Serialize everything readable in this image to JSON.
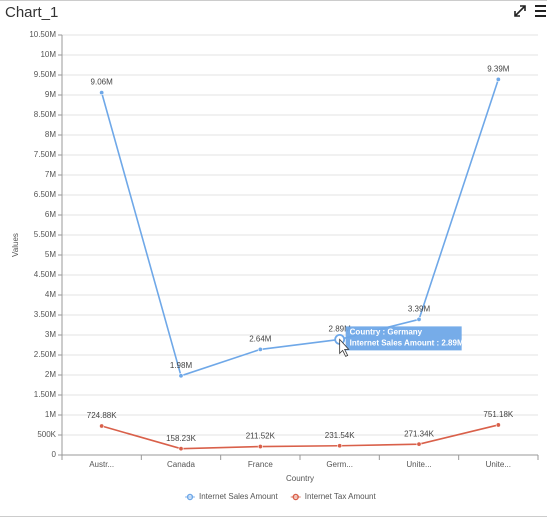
{
  "chart_data": {
    "type": "line",
    "title": "Chart_1",
    "x_label": "Country",
    "y_label": "Values",
    "categories": [
      "Austr...",
      "Canada",
      "France",
      "Germ...",
      "Unite...",
      "Unite..."
    ],
    "series": [
      {
        "name": "Internet Sales Amount",
        "color": "#6fa8e8",
        "values": [
          9060000,
          1980000,
          2640000,
          2890000,
          3390000,
          9390000
        ],
        "value_labels": [
          "9.06M",
          "1.98M",
          "2.64M",
          "2.89M",
          "3.39M",
          "9.39M"
        ]
      },
      {
        "name": "Internet Tax Amount",
        "color": "#d9604a",
        "values": [
          724880,
          158230,
          211520,
          231540,
          271340,
          751180
        ],
        "value_labels": [
          "724.88K",
          "158.23K",
          "211.52K",
          "231.54K",
          "271.34K",
          "751.18K"
        ]
      }
    ],
    "ylim": [
      0,
      10500000
    ],
    "yticks": [
      0,
      {
        "value": 500000,
        "label": "500K"
      },
      {
        "value": 1000000,
        "label": "1M"
      },
      {
        "value": 1500000,
        "label": "1.50M"
      },
      {
        "value": 2000000,
        "label": "2M"
      },
      {
        "value": 2500000,
        "label": "2.50M"
      },
      {
        "value": 3000000,
        "label": "3M"
      },
      {
        "value": 3500000,
        "label": "3.50M"
      },
      {
        "value": 4000000,
        "label": "4M"
      },
      {
        "value": 4500000,
        "label": "4.50M"
      },
      {
        "value": 5000000,
        "label": "5M"
      },
      {
        "value": 5500000,
        "label": "5.50M"
      },
      {
        "value": 6000000,
        "label": "6M"
      },
      {
        "value": 6500000,
        "label": "6.50M"
      },
      {
        "value": 7000000,
        "label": "7M"
      },
      {
        "value": 7500000,
        "label": "7.50M"
      },
      {
        "value": 8000000,
        "label": "8M"
      },
      {
        "value": 8500000,
        "label": "8.50M"
      },
      {
        "value": 9000000,
        "label": "9M"
      },
      {
        "value": 9500000,
        "label": "9.50M"
      },
      {
        "value": 10000000,
        "label": "10M"
      },
      {
        "value": 10500000,
        "label": "10.50M"
      }
    ],
    "grid": true,
    "legend": "bottom",
    "tooltip": [
      "Country : Germany",
      "Internet Sales Amount : 2.89M"
    ]
  }
}
